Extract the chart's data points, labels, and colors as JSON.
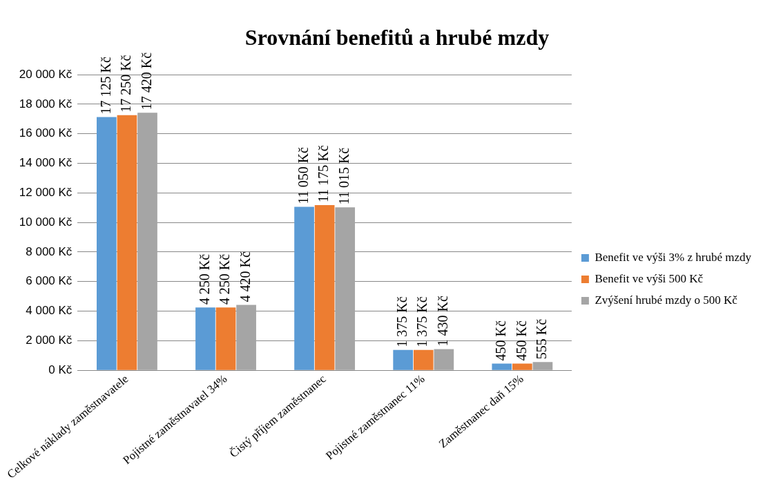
{
  "chart_data": {
    "type": "bar",
    "title": "Srovnání benefitů a hrubé mzdy",
    "categories": [
      "Celkové náklady zaměstnavatele",
      "Pojistné zaměstnavatel 34%",
      "Čistý příjem zaměstnanec",
      "Pojistné zaměstnanec 11%",
      "Zaměstnanec daň 15%"
    ],
    "series": [
      {
        "name": "Benefit ve výši 3% z hrubé mzdy",
        "color": "#5b9bd5",
        "values": [
          17125,
          4250,
          11050,
          1375,
          450
        ],
        "value_labels": [
          "17 125 Kč",
          "4 250 Kč",
          "11 050 Kč",
          "1 375 Kč",
          "450 Kč"
        ]
      },
      {
        "name": "Benefit ve výši 500 Kč",
        "color": "#ed7d31",
        "values": [
          17250,
          4250,
          11175,
          1375,
          450
        ],
        "value_labels": [
          "17 250 Kč",
          "4 250 Kč",
          "11 175 Kč",
          "1 375 Kč",
          "450 Kč"
        ]
      },
      {
        "name": "Zvýšení hrubé mzdy o 500 Kč",
        "color": "#a5a5a5",
        "values": [
          17420,
          4420,
          11015,
          1430,
          555
        ],
        "value_labels": [
          "17 420 Kč",
          "4 420 Kč",
          "11 015 Kč",
          "1 430 Kč",
          "555 Kč"
        ]
      }
    ],
    "ylim": [
      0,
      20000
    ],
    "yticks": [
      {
        "value": 0,
        "label": "0 Kč"
      },
      {
        "value": 2000,
        "label": "2 000 Kč"
      },
      {
        "value": 4000,
        "label": "4 000 Kč"
      },
      {
        "value": 6000,
        "label": "6 000 Kč"
      },
      {
        "value": 8000,
        "label": "8 000 Kč"
      },
      {
        "value": 10000,
        "label": "10 000 Kč"
      },
      {
        "value": 12000,
        "label": "12 000 Kč"
      },
      {
        "value": 14000,
        "label": "14 000 Kč"
      },
      {
        "value": 16000,
        "label": "16 000 Kč"
      },
      {
        "value": 18000,
        "label": "18 000 Kč"
      },
      {
        "value": 20000,
        "label": "20 000 Kč"
      }
    ],
    "grid": "y",
    "legend": "right"
  }
}
